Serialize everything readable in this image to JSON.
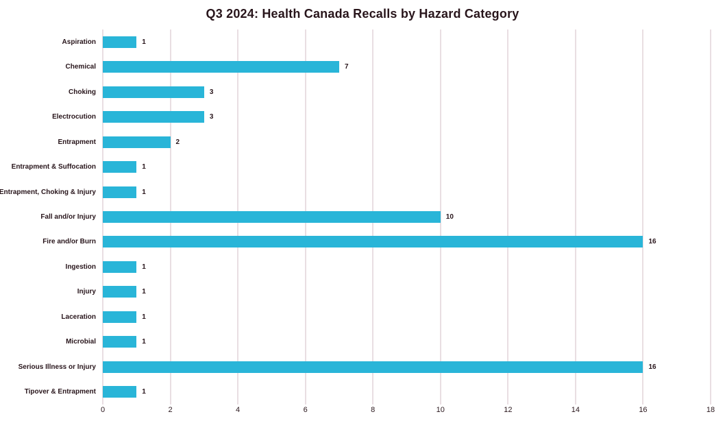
{
  "title": "Q3 2024: Health Canada Recalls by Hazard Category",
  "chart_data": {
    "type": "bar",
    "orientation": "horizontal",
    "title": "Q3 2024: Health Canada Recalls by Hazard Category",
    "xlabel": "",
    "ylabel": "",
    "categories": [
      "Aspiration",
      "Chemical",
      "Choking",
      "Electrocution",
      "Entrapment",
      "Entrapment & Suffocation",
      "Entrapment, Choking & Injury",
      "Fall and/or Injury",
      "Fire and/or Burn",
      "Ingestion",
      "Injury",
      "Laceration",
      "Microbial",
      "Serious Illness or Injury",
      "Tipover & Entrapment"
    ],
    "values": [
      1,
      7,
      3,
      3,
      2,
      1,
      1,
      10,
      16,
      1,
      1,
      1,
      1,
      16,
      1
    ],
    "value_labels": [
      "1",
      "7",
      "3",
      "3",
      "2",
      "1",
      "1",
      "10",
      "16",
      "1",
      "1",
      "1",
      "1",
      "16",
      "1"
    ],
    "xlim": [
      0,
      18
    ],
    "x_ticks": [
      0,
      2,
      4,
      6,
      8,
      10,
      12,
      14,
      16,
      18
    ],
    "grid": "vertical-only",
    "legend": "none",
    "colors": {
      "bar": "#29b5d8",
      "gridline": "#e9dee2",
      "text": "#28151b",
      "background": "#ffffff"
    }
  }
}
